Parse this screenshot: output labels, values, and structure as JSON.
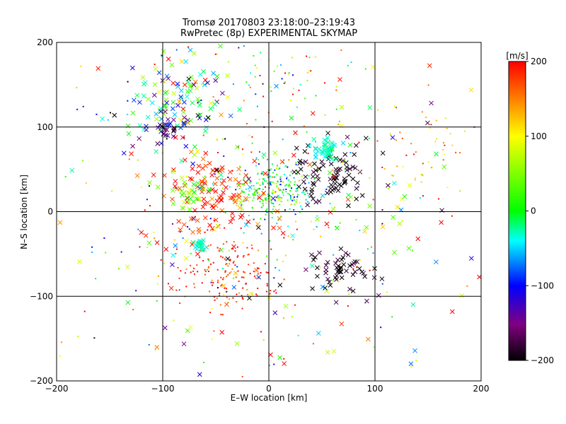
{
  "chart_data": {
    "type": "scatter",
    "title": "Tromsø 20170803 23:18:00–23:19:43",
    "subtitle": "RwPretec (8p) EXPERIMENTAL SKYMAP",
    "xlabel": "E–W location [km]",
    "ylabel": "N–S location [km]",
    "xlim": [
      -200,
      200
    ],
    "ylim": [
      -200,
      200
    ],
    "xticks": [
      -200,
      -100,
      0,
      100,
      200
    ],
    "yticks": [
      -200,
      -100,
      0,
      100,
      200
    ],
    "grid": true,
    "colorbar": {
      "label": "[m/s]",
      "range": [
        -200,
        200
      ],
      "ticks": [
        200,
        100,
        0,
        -100,
        -200
      ],
      "colormap": "rainbow: black, purple, blue, cyan, green, yellow, red"
    },
    "marker_types": [
      "dot",
      "x"
    ],
    "point_clusters": [
      {
        "x": 5,
        "y": 25,
        "spread": 18,
        "count": 260,
        "velocity": 0,
        "vspread": 60,
        "marker": "dot"
      },
      {
        "x": -40,
        "y": -75,
        "spread": 22,
        "count": 150,
        "velocity": 190,
        "vspread": 25,
        "marker": "dot"
      },
      {
        "x": -50,
        "y": 25,
        "spread": 25,
        "count": 110,
        "velocity": 185,
        "vspread": 25,
        "marker": "x"
      },
      {
        "x": 60,
        "y": 45,
        "spread": 20,
        "count": 90,
        "velocity": -195,
        "vspread": 10,
        "marker": "x"
      },
      {
        "x": 65,
        "y": -70,
        "spread": 14,
        "count": 55,
        "velocity": -190,
        "vspread": 15,
        "marker": "x"
      },
      {
        "x": -85,
        "y": 130,
        "spread": 25,
        "count": 110,
        "velocity": -20,
        "vspread": 90,
        "marker": "x"
      },
      {
        "x": 55,
        "y": 75,
        "spread": 6,
        "count": 45,
        "velocity": -30,
        "vspread": 10,
        "marker": "x"
      },
      {
        "x": -65,
        "y": -40,
        "spread": 4,
        "count": 25,
        "velocity": -30,
        "vspread": 10,
        "marker": "x"
      },
      {
        "x": -75,
        "y": 20,
        "spread": 8,
        "count": 30,
        "velocity": 50,
        "vspread": 30,
        "marker": "x"
      },
      {
        "x": -95,
        "y": 100,
        "spread": 8,
        "count": 30,
        "velocity": -120,
        "vspread": 40,
        "marker": "x"
      },
      {
        "x": 135,
        "y": 65,
        "spread": 25,
        "count": 50,
        "velocity": 130,
        "vspread": 40,
        "marker": "dot"
      },
      {
        "x": 10,
        "y": 150,
        "spread": 40,
        "count": 80,
        "velocity": 60,
        "vspread": 100,
        "marker": "dot"
      },
      {
        "x": -20,
        "y": 0,
        "spread": 100,
        "count": 260,
        "velocity": 50,
        "vspread": 150,
        "marker": "dot"
      },
      {
        "x": 0,
        "y": 0,
        "spread": 100,
        "count": 180,
        "velocity": 40,
        "vspread": 150,
        "marker": "x"
      }
    ]
  }
}
